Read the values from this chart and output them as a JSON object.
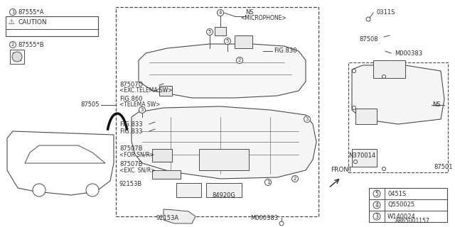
{
  "bg_color": "#ffffff",
  "line_color": "#4a4a4a",
  "text_color": "#2a2a2a",
  "diagram_number": "A865001157",
  "caution_label": "87555*A",
  "caution_text": "CAUTION",
  "label2": "87555*B",
  "label_87505": "87505",
  "c1_87507D": "87507D",
  "c1_sub": "<EXC.TELEMA SW>",
  "c2_fig860": "FIG.860",
  "c2_sub": "<TELEMA SW>",
  "fig833a": "FIG.833",
  "fig833b": "FIG.833",
  "c3_87507B_a": "87507B",
  "c3_sub_a": "<FOR SN/R>",
  "c3_87507B_b": "87507B",
  "c3_sub_b": "<EXC. SN/R>",
  "label_92153B": "92153B",
  "label_84920G": "84920G",
  "label_92153A": "92153A",
  "label_M000383_bot": "M000383",
  "label_M000383_right": "M000383",
  "ns_mic": "NS",
  "microphone": "<MICROPHONE>",
  "fig830": "FIG.830",
  "label_0311S": "0311S",
  "label_87508": "87508",
  "label_NS_right": "NS",
  "label_N370014": "N370014",
  "label_87501": "87501",
  "front_text": "FRONT",
  "leg3_num": "3",
  "leg3_val": "W140024",
  "leg4_num": "4",
  "leg4_val": "Q550025",
  "leg5_num": "5",
  "leg5_val": "0451S"
}
